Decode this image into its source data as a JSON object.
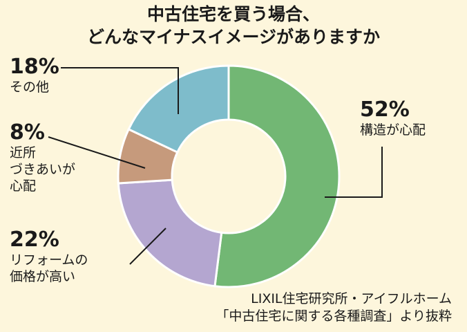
{
  "title_lines": [
    "中古住宅を買う場合、",
    "どんなマイナスイメージがありますか"
  ],
  "source_lines": [
    "LIXIL住宅研究所・アイフルホーム",
    "「中古住宅に関する各種調査」より抜粋"
  ],
  "chart_data": {
    "type": "pie",
    "donut": true,
    "slices": [
      {
        "label": "構造が心配",
        "label_lines": [
          "構造が心配"
        ],
        "value": 52,
        "value_text": "52%",
        "color": "#72b774"
      },
      {
        "label": "リフォームの価格が高い",
        "label_lines": [
          "リフォームの",
          "価格が高い"
        ],
        "value": 22,
        "value_text": "22%",
        "color": "#b4a6d0"
      },
      {
        "label": "近所づきあいが心配",
        "label_lines": [
          "近所",
          "づきあいが",
          "心配"
        ],
        "value": 8,
        "value_text": "8%",
        "color": "#c69a7c"
      },
      {
        "label": "その他",
        "label_lines": [
          "その他"
        ],
        "value": 18,
        "value_text": "18%",
        "color": "#7ebccb"
      }
    ]
  }
}
